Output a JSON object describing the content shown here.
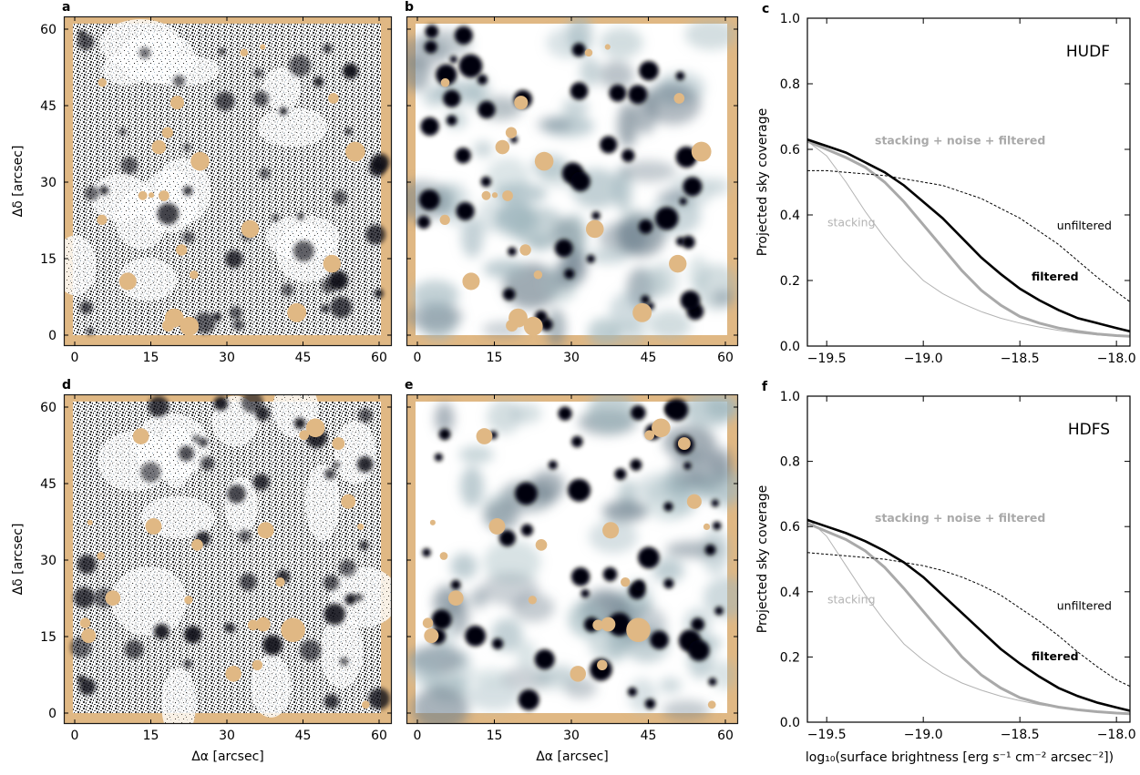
{
  "colors": {
    "mask": "#e0b884",
    "frame": "#1a1a1a",
    "dense": "#0b0b12",
    "grey_curve": "#a9a9a9",
    "stacking_curve": "#b3b3b3"
  },
  "panels": [
    {
      "id": "a",
      "label": "a",
      "kind": "noise-map",
      "field": "HUDF",
      "ylabel": "Δδ [arcsec]",
      "xlabel": "",
      "xticks": [
        "0",
        "15",
        "30",
        "45",
        "60"
      ],
      "yticks": [
        "0",
        "15",
        "30",
        "45",
        "60"
      ]
    },
    {
      "id": "b",
      "label": "b",
      "kind": "smoothed-map",
      "field": "HUDF",
      "ylabel": "",
      "xlabel": "",
      "xticks": [
        "0",
        "15",
        "30",
        "45",
        "60"
      ],
      "yticks": []
    },
    {
      "id": "d",
      "label": "d",
      "kind": "noise-map",
      "field": "HDFS",
      "ylabel": "Δδ [arcsec]",
      "xlabel": "Δα [arcsec]",
      "xticks": [
        "0",
        "15",
        "30",
        "45",
        "60"
      ],
      "yticks": [
        "0",
        "15",
        "30",
        "45",
        "60"
      ]
    },
    {
      "id": "e",
      "label": "e",
      "kind": "smoothed-map",
      "field": "HDFS",
      "ylabel": "",
      "xlabel": "Δα [arcsec]",
      "xticks": [
        "0",
        "15",
        "30",
        "45",
        "60"
      ],
      "yticks": []
    }
  ],
  "chart_data": [
    {
      "id": "c",
      "label": "c",
      "type": "line",
      "field_label": "HUDF",
      "xlabel": "",
      "ylabel": "Projected sky coverage",
      "xlim": [
        -19.6,
        -17.93
      ],
      "ylim": [
        0,
        1.0
      ],
      "xticks": [
        -19.5,
        -19.0,
        -18.5,
        -18.0
      ],
      "xtick_labels": [
        "−19.5",
        "−19.0",
        "−18.5",
        "−18.0"
      ],
      "yticks": [
        0,
        0.2,
        0.4,
        0.6,
        0.8,
        1.0
      ],
      "ytick_labels": [
        "0.0",
        "0.2",
        "0.4",
        "0.6",
        "0.8",
        "1.0"
      ],
      "annotations": {
        "stack_noise_filtered": "stacking + noise + filtered",
        "stacking": "stacking",
        "unfiltered": "unfiltered",
        "filtered": "filtered"
      },
      "series": [
        {
          "key": "filtered",
          "style": "solid-thick-black",
          "x": [
            -19.6,
            -19.5,
            -19.4,
            -19.3,
            -19.2,
            -19.1,
            -19.0,
            -18.9,
            -18.8,
            -18.7,
            -18.6,
            -18.5,
            -18.4,
            -18.3,
            -18.2,
            -18.1,
            -18.0,
            -17.93
          ],
          "y": [
            0.63,
            0.61,
            0.59,
            0.56,
            0.53,
            0.49,
            0.44,
            0.39,
            0.33,
            0.27,
            0.22,
            0.175,
            0.14,
            0.11,
            0.085,
            0.07,
            0.055,
            0.045
          ]
        },
        {
          "key": "unfiltered",
          "style": "dashed-black",
          "x": [
            -19.6,
            -19.5,
            -19.4,
            -19.3,
            -19.2,
            -19.1,
            -19.0,
            -18.9,
            -18.8,
            -18.7,
            -18.6,
            -18.5,
            -18.4,
            -18.3,
            -18.2,
            -18.1,
            -18.0,
            -17.93
          ],
          "y": [
            0.535,
            0.535,
            0.53,
            0.525,
            0.52,
            0.51,
            0.5,
            0.49,
            0.47,
            0.45,
            0.42,
            0.39,
            0.35,
            0.31,
            0.26,
            0.21,
            0.165,
            0.135
          ]
        },
        {
          "key": "stack_noise_filtered",
          "style": "solid-thick-grey",
          "x": [
            -19.6,
            -19.5,
            -19.4,
            -19.3,
            -19.2,
            -19.1,
            -19.0,
            -18.9,
            -18.8,
            -18.7,
            -18.6,
            -18.5,
            -18.4,
            -18.3,
            -18.2,
            -18.1,
            -18.0,
            -17.93
          ],
          "y": [
            0.625,
            0.6,
            0.575,
            0.545,
            0.5,
            0.44,
            0.37,
            0.3,
            0.23,
            0.17,
            0.125,
            0.09,
            0.07,
            0.055,
            0.045,
            0.037,
            0.032,
            0.03
          ]
        },
        {
          "key": "stacking",
          "style": "solid-thin-grey",
          "x": [
            -19.6,
            -19.5,
            -19.4,
            -19.3,
            -19.2,
            -19.1,
            -19.0,
            -18.9,
            -18.8,
            -18.7,
            -18.6,
            -18.5,
            -18.4,
            -18.3,
            -18.2,
            -18.1,
            -18.0,
            -17.93
          ],
          "y": [
            0.625,
            0.58,
            0.5,
            0.41,
            0.33,
            0.26,
            0.2,
            0.16,
            0.13,
            0.105,
            0.085,
            0.07,
            0.058,
            0.048,
            0.04,
            0.034,
            0.03,
            0.028
          ]
        }
      ]
    },
    {
      "id": "f",
      "label": "f",
      "type": "line",
      "field_label": "HDFS",
      "xlabel": "log₁₀(surface brightness [erg s⁻¹ cm⁻² arcsec⁻²])",
      "ylabel": "Projected sky coverage",
      "xlim": [
        -19.6,
        -17.93
      ],
      "ylim": [
        0,
        1.0
      ],
      "xticks": [
        -19.5,
        -19.0,
        -18.5,
        -18.0
      ],
      "xtick_labels": [
        "−19.5",
        "−19.0",
        "−18.5",
        "−18.0"
      ],
      "yticks": [
        0,
        0.2,
        0.4,
        0.6,
        0.8,
        1.0
      ],
      "ytick_labels": [
        "0.0",
        "0.2",
        "0.4",
        "0.6",
        "0.8",
        "1.0"
      ],
      "annotations": {
        "stack_noise_filtered": "stacking + noise + filtered",
        "stacking": "stacking",
        "unfiltered": "unfiltered",
        "filtered": "filtered"
      },
      "series": [
        {
          "key": "filtered",
          "style": "solid-thick-black",
          "x": [
            -19.6,
            -19.5,
            -19.4,
            -19.3,
            -19.2,
            -19.1,
            -19.0,
            -18.9,
            -18.8,
            -18.7,
            -18.6,
            -18.5,
            -18.4,
            -18.3,
            -18.2,
            -18.1,
            -18.0,
            -17.93
          ],
          "y": [
            0.62,
            0.6,
            0.58,
            0.555,
            0.525,
            0.49,
            0.445,
            0.39,
            0.335,
            0.28,
            0.225,
            0.18,
            0.14,
            0.105,
            0.08,
            0.06,
            0.045,
            0.035
          ]
        },
        {
          "key": "unfiltered",
          "style": "dashed-black",
          "x": [
            -19.6,
            -19.5,
            -19.4,
            -19.3,
            -19.2,
            -19.1,
            -19.0,
            -18.9,
            -18.8,
            -18.7,
            -18.6,
            -18.5,
            -18.4,
            -18.3,
            -18.2,
            -18.1,
            -18.0,
            -17.93
          ],
          "y": [
            0.52,
            0.515,
            0.51,
            0.505,
            0.5,
            0.49,
            0.48,
            0.465,
            0.445,
            0.42,
            0.39,
            0.35,
            0.31,
            0.265,
            0.215,
            0.17,
            0.13,
            0.11
          ]
        },
        {
          "key": "stack_noise_filtered",
          "style": "solid-thick-grey",
          "x": [
            -19.6,
            -19.5,
            -19.4,
            -19.3,
            -19.2,
            -19.1,
            -19.0,
            -18.9,
            -18.8,
            -18.7,
            -18.6,
            -18.5,
            -18.4,
            -18.3,
            -18.2,
            -18.1,
            -18.0,
            -17.93
          ],
          "y": [
            0.61,
            0.585,
            0.56,
            0.525,
            0.475,
            0.41,
            0.34,
            0.27,
            0.2,
            0.145,
            0.105,
            0.075,
            0.058,
            0.046,
            0.038,
            0.032,
            0.028,
            0.026
          ]
        },
        {
          "key": "stacking",
          "style": "solid-thin-grey",
          "x": [
            -19.6,
            -19.5,
            -19.4,
            -19.3,
            -19.2,
            -19.1,
            -19.0,
            -18.9,
            -18.8,
            -18.7,
            -18.6,
            -18.5,
            -18.4,
            -18.3,
            -18.2,
            -18.1,
            -18.0,
            -17.93
          ],
          "y": [
            0.625,
            0.57,
            0.48,
            0.39,
            0.31,
            0.24,
            0.19,
            0.15,
            0.12,
            0.098,
            0.08,
            0.066,
            0.054,
            0.045,
            0.038,
            0.032,
            0.028,
            0.026
          ]
        }
      ]
    }
  ]
}
